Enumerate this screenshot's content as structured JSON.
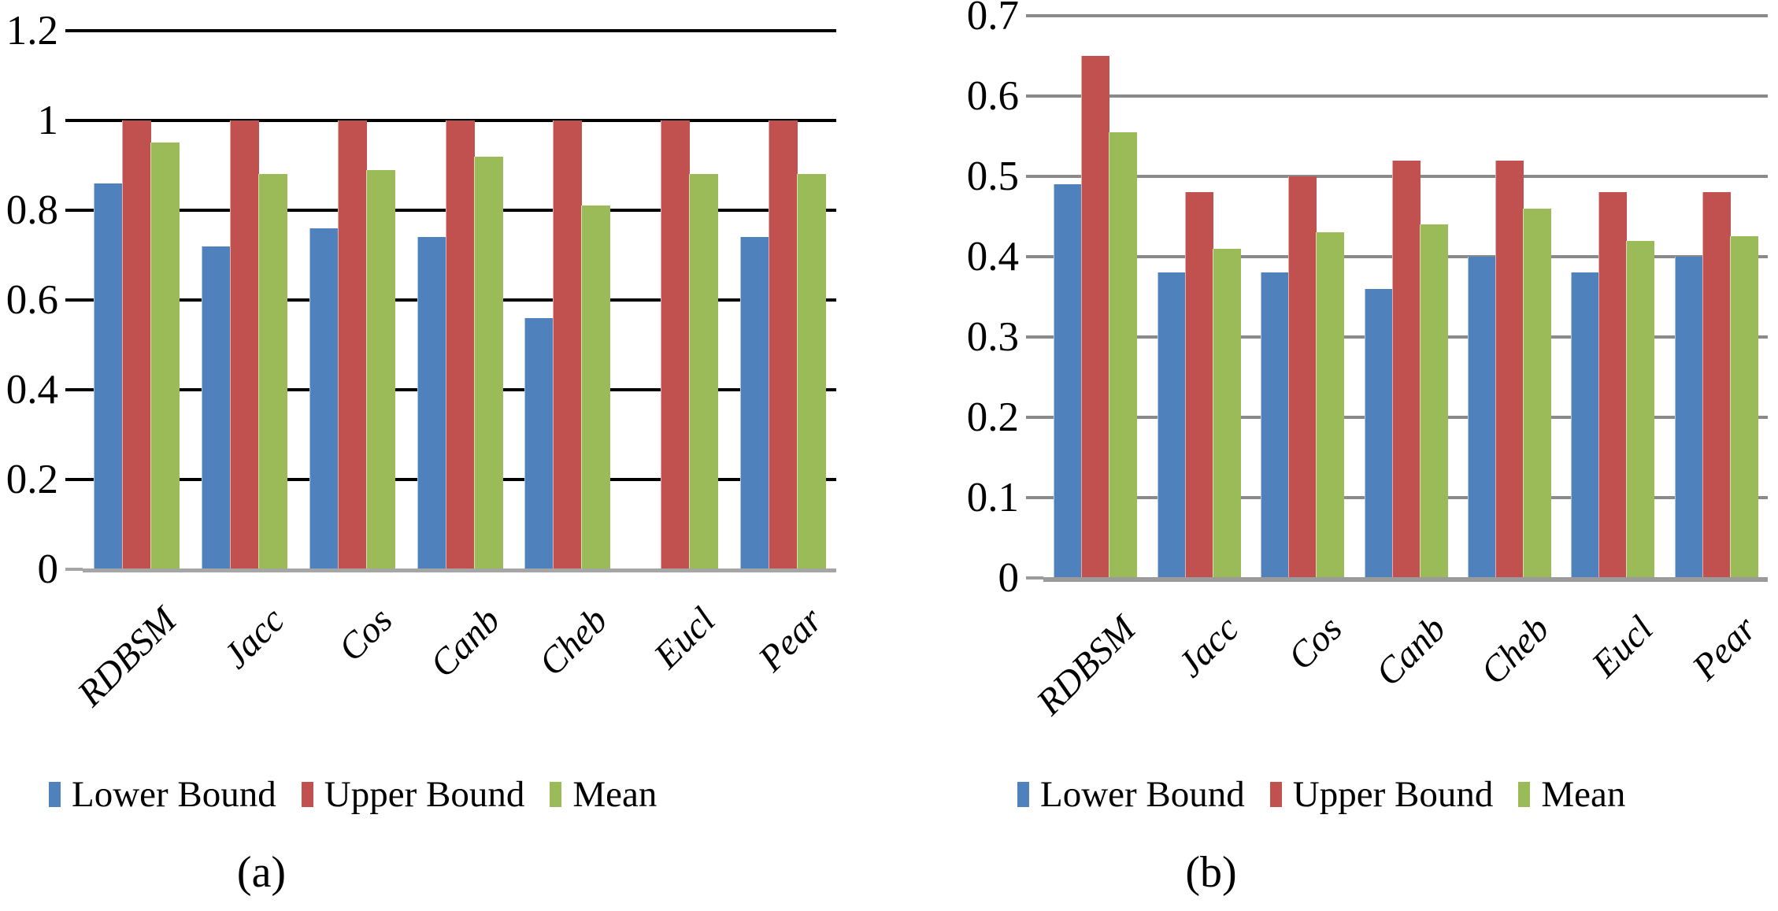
{
  "figure": {
    "background": "#FFFFFF",
    "text_color": "#000000"
  },
  "chart_data": [
    {
      "type": "bar",
      "id": "a",
      "caption": "(a)",
      "title": "",
      "xlabel": "",
      "ylabel": "",
      "categories": [
        "RDBSM",
        "Jacc",
        "Cos",
        "Canb",
        "Cheb",
        "Eucl",
        "Pear"
      ],
      "series": [
        {
          "name": "Lower Bound",
          "color": "#4F81BD",
          "values": [
            0.86,
            0.72,
            0.76,
            0.74,
            0.56,
            0,
            0.74
          ]
        },
        {
          "name": "Upper Bound",
          "color": "#C0514E",
          "values": [
            1.0,
            1.0,
            1.0,
            1.0,
            1.0,
            1.0,
            1.0
          ]
        },
        {
          "name": "Mean",
          "color": "#9BBB59",
          "values": [
            0.95,
            0.88,
            0.89,
            0.92,
            0.81,
            0.88,
            0.88
          ]
        }
      ],
      "ylim": [
        0,
        1.2
      ],
      "yticks": [
        {
          "label": "1.2",
          "value": 1.2
        },
        {
          "label": "1",
          "value": 1.0
        },
        {
          "label": "0.8",
          "value": 0.8
        },
        {
          "label": "0.6",
          "value": 0.6
        },
        {
          "label": "0.4",
          "value": 0.4
        },
        {
          "label": "0.2",
          "value": 0.2
        },
        {
          "label": "0",
          "value": 0
        }
      ],
      "grid": true,
      "grid_color": "#000000",
      "baseline_color": "#A6A6A6",
      "legend_position": "bottom"
    },
    {
      "type": "bar",
      "id": "b",
      "caption": "(b)",
      "title": "",
      "xlabel": "",
      "ylabel": "",
      "categories": [
        "RDBSM",
        "Jacc",
        "Cos",
        "Canb",
        "Cheb",
        "Eucl",
        "Pear"
      ],
      "series": [
        {
          "name": "Lower Bound",
          "color": "#4F81BD",
          "values": [
            0.49,
            0.38,
            0.38,
            0.36,
            0.4,
            0.38,
            0.4
          ]
        },
        {
          "name": "Upper Bound",
          "color": "#C0514E",
          "values": [
            0.65,
            0.48,
            0.5,
            0.52,
            0.52,
            0.48,
            0.48
          ]
        },
        {
          "name": "Mean",
          "color": "#9BBB59",
          "values": [
            0.555,
            0.41,
            0.43,
            0.44,
            0.46,
            0.42,
            0.425
          ]
        }
      ],
      "ylim": [
        0,
        0.7
      ],
      "yticks": [
        {
          "label": "0.7",
          "value": 0.7
        },
        {
          "label": "0.6",
          "value": 0.6
        },
        {
          "label": "0.5",
          "value": 0.5
        },
        {
          "label": "0.4",
          "value": 0.4
        },
        {
          "label": "0.3",
          "value": 0.3
        },
        {
          "label": "0.2",
          "value": 0.2
        },
        {
          "label": "0.1",
          "value": 0.1
        },
        {
          "label": "0",
          "value": 0
        }
      ],
      "grid": true,
      "grid_color": "#8A8A8A",
      "baseline_color": "#9B9B9B",
      "legend_position": "bottom"
    }
  ]
}
